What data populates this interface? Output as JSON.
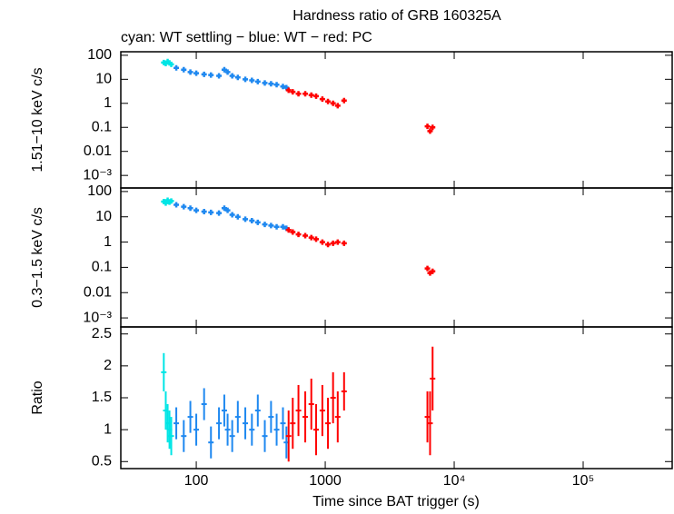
{
  "chart_data": [
    {
      "type": "scatter",
      "title": "Hardness ratio of GRB 160325A",
      "subtitle": "cyan: WT settling − blue: WT − red: PC",
      "ylabel": "1.51−10 keV c/s",
      "xscale": "log",
      "yscale": "log",
      "xlim": [
        26,
        490000
      ],
      "ylim": [
        0.0003,
        140
      ],
      "yticks": [
        100,
        10,
        1,
        0.1,
        0.01,
        {
          "value": 0.001,
          "label": "10⁻³"
        }
      ],
      "series": [
        {
          "name": "WT settling",
          "color": "#00e5e5",
          "x": [
            56,
            58,
            60,
            62,
            64
          ],
          "values": [
            50,
            45,
            55,
            48,
            42
          ]
        },
        {
          "name": "WT",
          "color": "#1e88f0",
          "x": [
            70,
            80,
            90,
            100,
            115,
            130,
            150,
            165,
            175,
            190,
            210,
            240,
            270,
            300,
            340,
            380,
            420,
            470,
            500
          ],
          "values": [
            30,
            25,
            20,
            18,
            16,
            15,
            14,
            25,
            20,
            14,
            12,
            10,
            9,
            8,
            7,
            6.5,
            6,
            5,
            4.5
          ]
        },
        {
          "name": "PC",
          "color": "#ff0000",
          "x": [
            520,
            560,
            620,
            700,
            780,
            850,
            950,
            1050,
            1150,
            1250,
            1400,
            6200,
            6500,
            6800
          ],
          "values": [
            3.5,
            3,
            2.5,
            2.5,
            2.2,
            2,
            1.5,
            1.2,
            1,
            0.8,
            1.3,
            0.11,
            0.07,
            0.1
          ]
        }
      ]
    },
    {
      "type": "scatter",
      "ylabel": "0.3−1.5 keV c/s",
      "xscale": "log",
      "yscale": "log",
      "xlim": [
        26,
        490000
      ],
      "ylim": [
        0.00044,
        138
      ],
      "yticks": [
        100,
        10,
        1,
        0.1,
        0.01,
        {
          "value": 0.001,
          "label": "10⁻³"
        }
      ],
      "series": [
        {
          "color": "#00e5e5",
          "x": [
            56,
            58,
            60,
            62,
            64
          ],
          "values": [
            40,
            35,
            45,
            38,
            42
          ]
        },
        {
          "color": "#1e88f0",
          "x": [
            70,
            80,
            90,
            100,
            115,
            130,
            150,
            165,
            175,
            190,
            210,
            240,
            270,
            300,
            340,
            380,
            420,
            470,
            500
          ],
          "values": [
            30,
            25,
            22,
            18,
            16,
            15,
            14,
            22,
            18,
            12,
            10,
            8,
            7,
            6,
            5,
            4.5,
            4,
            4,
            3.5
          ]
        },
        {
          "color": "#ff0000",
          "x": [
            520,
            560,
            620,
            700,
            780,
            850,
            950,
            1050,
            1150,
            1250,
            1400,
            6200,
            6500,
            6800
          ],
          "values": [
            3,
            2.5,
            2,
            1.8,
            1.5,
            1.3,
            1,
            0.8,
            0.9,
            1,
            0.9,
            0.09,
            0.06,
            0.07
          ]
        }
      ]
    },
    {
      "type": "errorbar",
      "ylabel": "Ratio",
      "xlabel": "Time since BAT trigger (s)",
      "xscale": "log",
      "xlim": [
        26,
        490000
      ],
      "ylim": [
        0.39,
        2.61
      ],
      "yticks": [
        0.5,
        1,
        1.5,
        2,
        2.5
      ],
      "xticks": [
        100,
        1000,
        {
          "value": 10000,
          "label": "10⁴"
        },
        {
          "value": 100000,
          "label": "10⁵"
        }
      ],
      "series": [
        {
          "color": "#00e5e5",
          "x": [
            56,
            58,
            60,
            62,
            64
          ],
          "values": [
            1.9,
            1.3,
            1.1,
            1.0,
            0.9
          ],
          "errors": [
            0.3,
            0.3,
            0.3,
            0.3,
            0.3
          ]
        },
        {
          "color": "#1e88f0",
          "x": [
            70,
            80,
            90,
            100,
            115,
            130,
            150,
            165,
            175,
            190,
            210,
            240,
            270,
            300,
            340,
            380,
            420,
            470,
            500
          ],
          "values": [
            1.1,
            0.9,
            1.2,
            1.0,
            1.4,
            0.8,
            1.1,
            1.3,
            1.0,
            0.9,
            1.2,
            1.1,
            1.0,
            1.3,
            0.9,
            1.2,
            1.0,
            1.1,
            0.8
          ],
          "errors": [
            0.25,
            0.25,
            0.25,
            0.25,
            0.25,
            0.25,
            0.25,
            0.25,
            0.25,
            0.25,
            0.25,
            0.25,
            0.25,
            0.25,
            0.25,
            0.25,
            0.25,
            0.25,
            0.25
          ]
        },
        {
          "color": "#ff0000",
          "x": [
            520,
            560,
            620,
            700,
            780,
            850,
            950,
            1050,
            1150,
            1250,
            1400,
            6200,
            6500,
            6800
          ],
          "values": [
            0.9,
            1.1,
            1.3,
            1.2,
            1.4,
            1.0,
            1.3,
            1.1,
            1.5,
            1.2,
            1.6,
            1.2,
            1.1,
            1.8
          ],
          "errors": [
            0.4,
            0.4,
            0.4,
            0.4,
            0.4,
            0.4,
            0.4,
            0.4,
            0.4,
            0.4,
            0.3,
            0.4,
            0.5,
            0.5
          ]
        }
      ]
    }
  ]
}
